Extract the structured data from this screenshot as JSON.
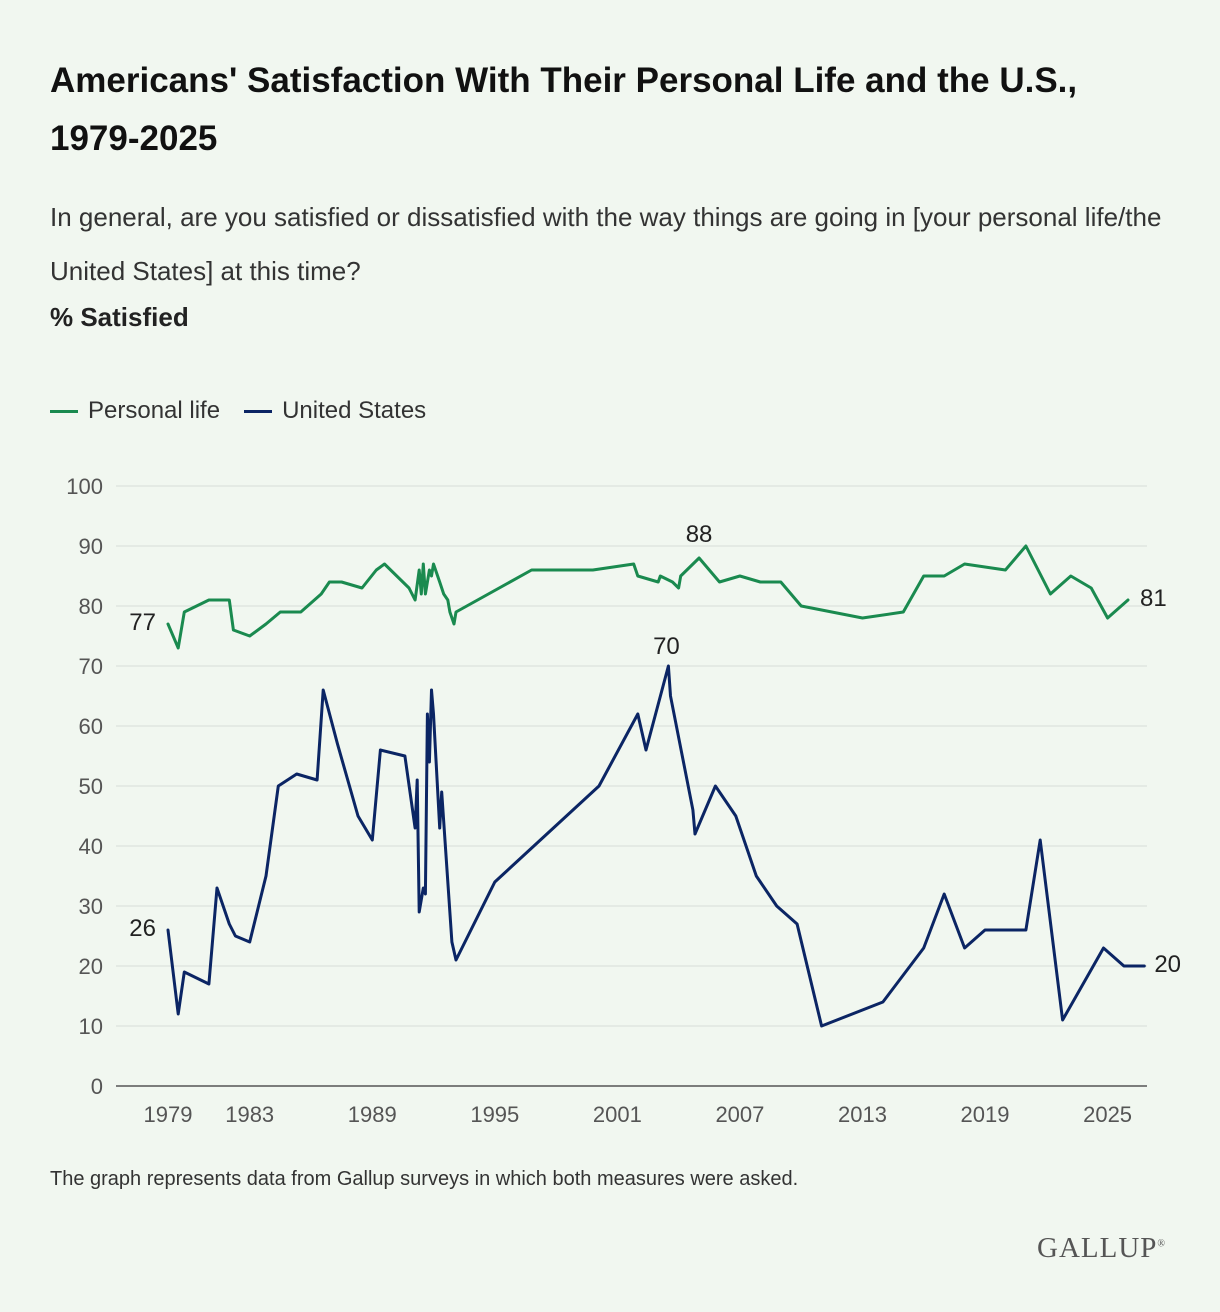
{
  "title": "Americans' Satisfaction With Their Personal Life and the U.S., 1979-2025",
  "subtitle": "In general, are you satisfied or dissatisfied with the way things are going in [your personal life/the United States] at this time?",
  "measure_label": "% Satisfied",
  "footnote": "The graph represents data from Gallup surveys in which both measures were asked.",
  "logo_text": "GALLUP",
  "colors": {
    "personal": "#1a8a4f",
    "us": "#0b2564",
    "grid": "#d8dcd8",
    "axis": "#555555"
  },
  "chart_data": {
    "type": "line",
    "xlim": [
      1978.0,
      2026.2
    ],
    "ylim": [
      0,
      100
    ],
    "yticks": [
      0,
      10,
      20,
      30,
      40,
      50,
      60,
      70,
      80,
      90,
      100
    ],
    "xticks": [
      1979,
      1983,
      1989,
      1995,
      2001,
      2007,
      2013,
      2019,
      2025
    ],
    "legend_position": "top-left",
    "grid": true,
    "series": [
      {
        "name": "Personal life",
        "color": "#1a8a4f",
        "points": [
          [
            1979.0,
            77
          ],
          [
            1979.5,
            73
          ],
          [
            1979.8,
            79
          ],
          [
            1981.0,
            81
          ],
          [
            1982.0,
            81
          ],
          [
            1982.2,
            76
          ],
          [
            1983.0,
            75
          ],
          [
            1983.8,
            77
          ],
          [
            1984.5,
            79
          ],
          [
            1985.5,
            79
          ],
          [
            1986.5,
            82
          ],
          [
            1986.9,
            84
          ],
          [
            1987.5,
            84
          ],
          [
            1988.5,
            83
          ],
          [
            1989.2,
            86
          ],
          [
            1989.6,
            87
          ],
          [
            1990.8,
            83
          ],
          [
            1991.1,
            81
          ],
          [
            1991.3,
            86
          ],
          [
            1991.4,
            82
          ],
          [
            1991.5,
            87
          ],
          [
            1991.6,
            82
          ],
          [
            1991.8,
            86
          ],
          [
            1991.9,
            85
          ],
          [
            1992.0,
            87
          ],
          [
            1992.3,
            84
          ],
          [
            1992.5,
            82
          ],
          [
            1992.7,
            81
          ],
          [
            1992.8,
            79
          ],
          [
            1993.0,
            77
          ],
          [
            1993.1,
            79
          ],
          [
            1996.8,
            86
          ],
          [
            1999.8,
            86
          ],
          [
            2001.8,
            87
          ],
          [
            2002.0,
            85
          ],
          [
            2003.0,
            84
          ],
          [
            2003.1,
            85
          ],
          [
            2003.7,
            84
          ],
          [
            2004.0,
            83
          ],
          [
            2004.1,
            85
          ],
          [
            2005.0,
            88
          ],
          [
            2006.0,
            84
          ],
          [
            2007.0,
            85
          ],
          [
            2008.0,
            84
          ],
          [
            2009.0,
            84
          ],
          [
            2010.0,
            80
          ],
          [
            2013.0,
            78
          ],
          [
            2015.0,
            79
          ],
          [
            2016.0,
            85
          ],
          [
            2017.0,
            85
          ],
          [
            2018.0,
            87
          ],
          [
            2020.0,
            86
          ],
          [
            2021.0,
            90
          ],
          [
            2022.2,
            82
          ],
          [
            2023.2,
            85
          ],
          [
            2024.2,
            83
          ],
          [
            2025.0,
            78
          ],
          [
            2026.0,
            81
          ]
        ]
      },
      {
        "name": "United States",
        "color": "#0b2564",
        "points": [
          [
            1979.0,
            26
          ],
          [
            1979.5,
            12
          ],
          [
            1979.8,
            19
          ],
          [
            1981.0,
            17
          ],
          [
            1981.4,
            33
          ],
          [
            1982.0,
            27
          ],
          [
            1982.3,
            25
          ],
          [
            1983.0,
            24
          ],
          [
            1983.8,
            35
          ],
          [
            1984.4,
            50
          ],
          [
            1985.3,
            52
          ],
          [
            1986.3,
            51
          ],
          [
            1986.6,
            66
          ],
          [
            1987.3,
            57
          ],
          [
            1988.3,
            45
          ],
          [
            1989.0,
            41
          ],
          [
            1989.4,
            56
          ],
          [
            1990.6,
            55
          ],
          [
            1991.1,
            43
          ],
          [
            1991.2,
            51
          ],
          [
            1991.3,
            29
          ],
          [
            1991.5,
            33
          ],
          [
            1991.6,
            32
          ],
          [
            1991.7,
            62
          ],
          [
            1991.8,
            54
          ],
          [
            1991.9,
            66
          ],
          [
            1992.0,
            62
          ],
          [
            1992.3,
            43
          ],
          [
            1992.4,
            49
          ],
          [
            1992.9,
            24
          ],
          [
            1993.1,
            21
          ],
          [
            1995.0,
            34
          ],
          [
            2000.1,
            50
          ],
          [
            2002.0,
            62
          ],
          [
            2002.4,
            56
          ],
          [
            2003.5,
            70
          ],
          [
            2003.6,
            65
          ],
          [
            2004.7,
            46
          ],
          [
            2004.8,
            42
          ],
          [
            2005.8,
            50
          ],
          [
            2006.8,
            45
          ],
          [
            2007.8,
            35
          ],
          [
            2008.8,
            30
          ],
          [
            2009.8,
            27
          ],
          [
            2011.0,
            10
          ],
          [
            2014.0,
            14
          ],
          [
            2016.0,
            23
          ],
          [
            2017.0,
            32
          ],
          [
            2018.0,
            23
          ],
          [
            2019.0,
            26
          ],
          [
            2021.0,
            26
          ],
          [
            2021.7,
            41
          ],
          [
            2022.8,
            11
          ],
          [
            2024.8,
            23
          ],
          [
            2025.8,
            20
          ],
          [
            2026.8,
            20
          ]
        ]
      }
    ],
    "point_labels": [
      {
        "series": "Personal life",
        "text": "77",
        "x": 1979.0,
        "y": 77,
        "anchor": "end",
        "dx": -12,
        "dy": 6
      },
      {
        "series": "Personal life",
        "text": "88",
        "x": 2005.0,
        "y": 88,
        "anchor": "middle",
        "dx": 0,
        "dy": -16
      },
      {
        "series": "Personal life",
        "text": "81",
        "x": 2026.0,
        "y": 81,
        "anchor": "start",
        "dx": 12,
        "dy": 6
      },
      {
        "series": "United States",
        "text": "26",
        "x": 1979.0,
        "y": 26,
        "anchor": "end",
        "dx": -12,
        "dy": 6
      },
      {
        "series": "United States",
        "text": "70",
        "x": 2003.5,
        "y": 70,
        "anchor": "middle",
        "dx": -2,
        "dy": -12
      },
      {
        "series": "United States",
        "text": "20",
        "x": 2026.8,
        "y": 20,
        "anchor": "start",
        "dx": 10,
        "dy": 6
      }
    ]
  }
}
